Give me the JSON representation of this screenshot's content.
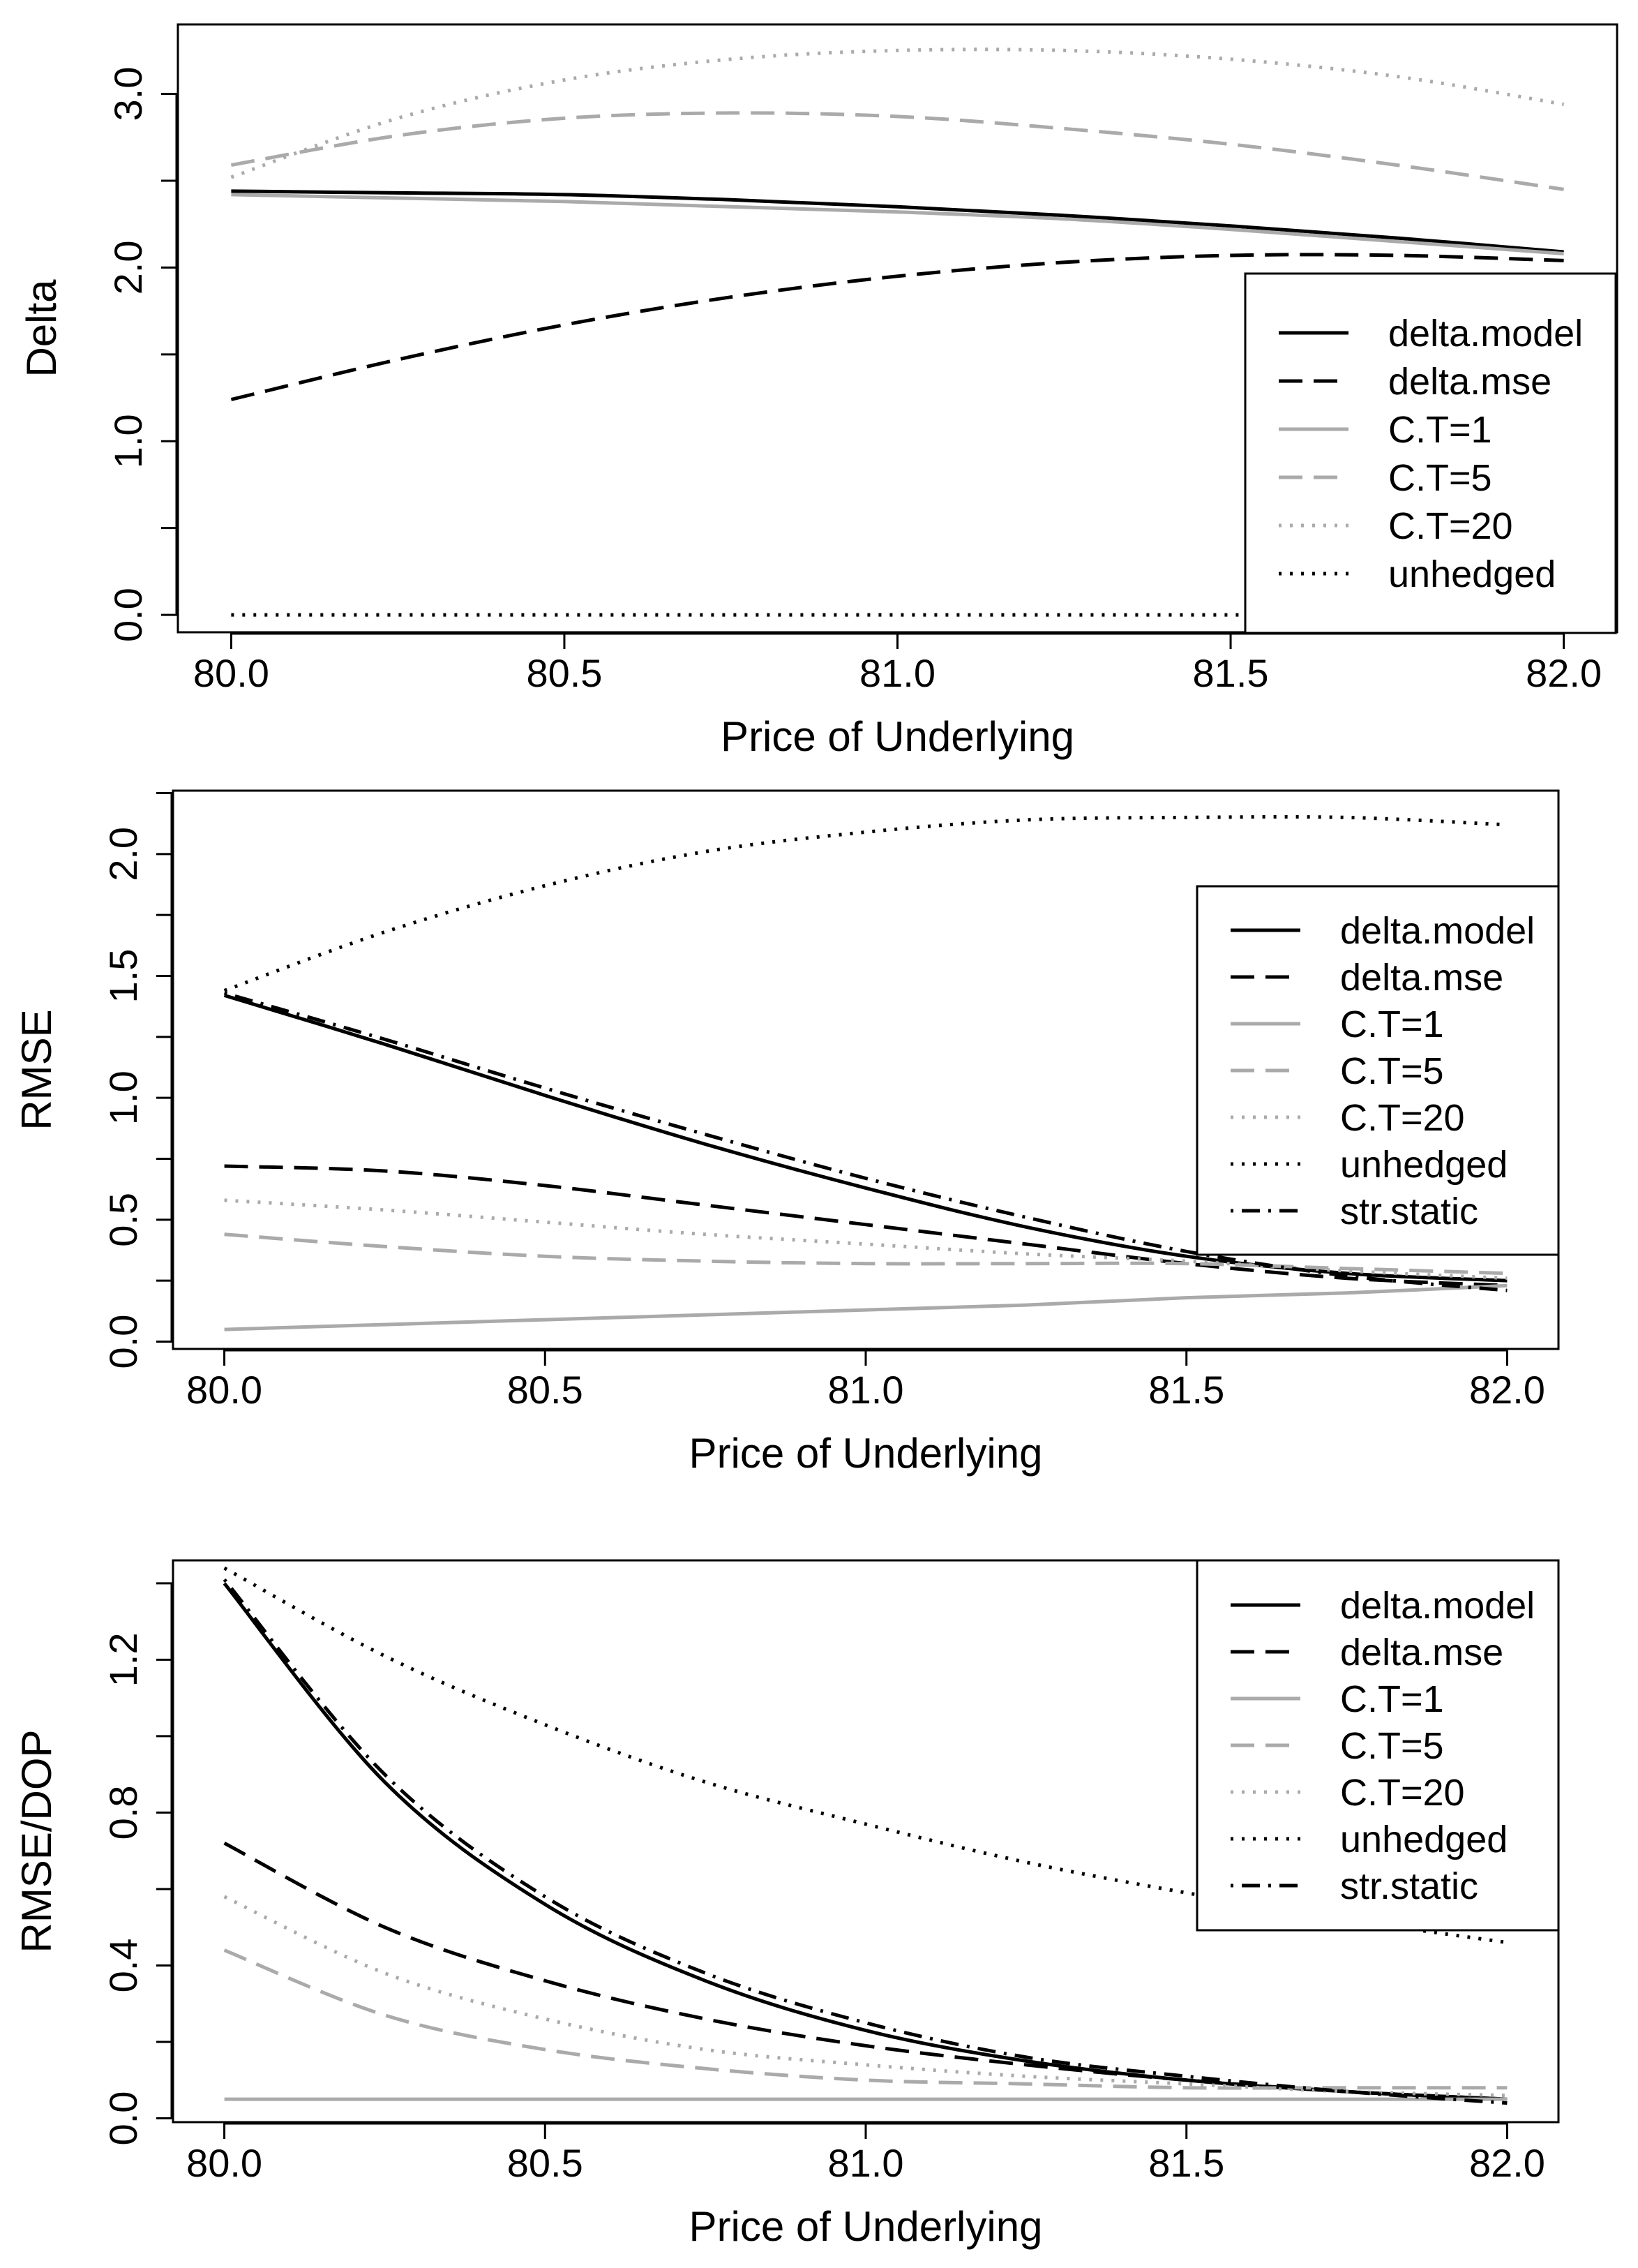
{
  "chart_data": [
    {
      "type": "line",
      "title": "",
      "xlabel": "Price of Underlying",
      "ylabel": "Delta",
      "xlim": [
        79.92,
        82.08
      ],
      "ylim": [
        -0.1,
        3.4
      ],
      "x_ticks": [
        "80.0",
        "80.5",
        "81.0",
        "81.5",
        "82.0"
      ],
      "y_ticks": [
        "0.0",
        "1.0",
        "2.0",
        "3.0"
      ],
      "x": [
        80.0,
        80.25,
        80.5,
        80.75,
        81.0,
        81.25,
        81.5,
        81.75,
        82.0
      ],
      "legend_position": "bottom-right",
      "series": [
        {
          "name": "delta.model",
          "color": "#000000",
          "dash": "solid",
          "values": [
            2.44,
            2.43,
            2.42,
            2.39,
            2.35,
            2.3,
            2.24,
            2.17,
            2.09
          ]
        },
        {
          "name": "delta.mse",
          "color": "#000000",
          "dash": "dashed",
          "values": [
            1.24,
            1.47,
            1.67,
            1.83,
            1.95,
            2.03,
            2.07,
            2.07,
            2.04
          ]
        },
        {
          "name": "C.T=1",
          "color": "#aaaaaa",
          "dash": "solid",
          "values": [
            2.42,
            2.4,
            2.38,
            2.35,
            2.32,
            2.28,
            2.22,
            2.15,
            2.08
          ]
        },
        {
          "name": "C.T=5",
          "color": "#aaaaaa",
          "dash": "dashed",
          "values": [
            2.59,
            2.76,
            2.86,
            2.89,
            2.87,
            2.8,
            2.71,
            2.59,
            2.45
          ]
        },
        {
          "name": "C.T=20",
          "color": "#aaaaaa",
          "dash": "dotted",
          "values": [
            2.52,
            2.86,
            3.08,
            3.2,
            3.25,
            3.25,
            3.2,
            3.1,
            2.94
          ]
        },
        {
          "name": "unhedged",
          "color": "#000000",
          "dash": "dotted",
          "values": [
            0.0,
            0.0,
            0.0,
            0.0,
            0.0,
            0.0,
            0.0,
            0.0,
            0.0
          ]
        }
      ]
    },
    {
      "type": "line",
      "title": "",
      "xlabel": "Price of Underlying",
      "ylabel": "RMSE",
      "xlim": [
        79.92,
        82.08
      ],
      "ylim": [
        -0.03,
        2.26
      ],
      "x_ticks": [
        "80.0",
        "80.5",
        "81.0",
        "81.5",
        "82.0"
      ],
      "y_ticks": [
        "0.0",
        "0.5",
        "1.0",
        "1.5",
        "2.0"
      ],
      "x": [
        80.0,
        80.25,
        80.5,
        80.75,
        81.0,
        81.25,
        81.5,
        81.75,
        82.0
      ],
      "legend_position": "right",
      "series": [
        {
          "name": "delta.model",
          "color": "#000000",
          "dash": "solid",
          "values": [
            1.42,
            1.22,
            1.01,
            0.81,
            0.63,
            0.47,
            0.35,
            0.28,
            0.25
          ]
        },
        {
          "name": "delta.mse",
          "color": "#000000",
          "dash": "dashed",
          "values": [
            0.72,
            0.7,
            0.64,
            0.56,
            0.48,
            0.4,
            0.32,
            0.26,
            0.23
          ]
        },
        {
          "name": "C.T=1",
          "color": "#aaaaaa",
          "dash": "solid",
          "values": [
            0.05,
            0.07,
            0.09,
            0.11,
            0.13,
            0.15,
            0.18,
            0.2,
            0.23
          ]
        },
        {
          "name": "C.T=5",
          "color": "#aaaaaa",
          "dash": "dashed",
          "values": [
            0.44,
            0.39,
            0.35,
            0.33,
            0.32,
            0.32,
            0.32,
            0.3,
            0.28
          ]
        },
        {
          "name": "C.T=20",
          "color": "#aaaaaa",
          "dash": "dotted",
          "values": [
            0.58,
            0.54,
            0.49,
            0.44,
            0.4,
            0.36,
            0.33,
            0.29,
            0.26
          ]
        },
        {
          "name": "unhedged",
          "color": "#000000",
          "dash": "dotted",
          "values": [
            1.44,
            1.68,
            1.87,
            2.01,
            2.09,
            2.14,
            2.15,
            2.15,
            2.12
          ]
        },
        {
          "name": "str.static",
          "color": "#000000",
          "dash": "dotdash",
          "values": [
            1.43,
            1.24,
            1.04,
            0.85,
            0.67,
            0.51,
            0.37,
            0.27,
            0.21
          ]
        }
      ]
    },
    {
      "type": "line",
      "title": "",
      "xlabel": "Price of Underlying",
      "ylabel": "RMSE/DOP",
      "xlim": [
        79.92,
        82.08
      ],
      "ylim": [
        -0.01,
        1.46
      ],
      "x_ticks": [
        "80.0",
        "80.5",
        "81.0",
        "81.5",
        "82.0"
      ],
      "y_ticks": [
        "0.0",
        "0.4",
        "0.8",
        "1.2"
      ],
      "x": [
        80.0,
        80.25,
        80.5,
        80.75,
        81.0,
        81.25,
        81.5,
        81.75,
        82.0
      ],
      "legend_position": "top-right",
      "series": [
        {
          "name": "delta.model",
          "color": "#000000",
          "dash": "solid",
          "values": [
            1.4,
            0.88,
            0.56,
            0.36,
            0.23,
            0.15,
            0.1,
            0.07,
            0.05
          ]
        },
        {
          "name": "delta.mse",
          "color": "#000000",
          "dash": "dashed",
          "values": [
            0.72,
            0.5,
            0.36,
            0.26,
            0.19,
            0.14,
            0.1,
            0.07,
            0.05
          ]
        },
        {
          "name": "C.T=1",
          "color": "#aaaaaa",
          "dash": "solid",
          "values": [
            0.05,
            0.05,
            0.05,
            0.05,
            0.05,
            0.05,
            0.05,
            0.05,
            0.05
          ]
        },
        {
          "name": "C.T=5",
          "color": "#aaaaaa",
          "dash": "dashed",
          "values": [
            0.44,
            0.27,
            0.18,
            0.13,
            0.1,
            0.09,
            0.08,
            0.08,
            0.08
          ]
        },
        {
          "name": "C.T=20",
          "color": "#aaaaaa",
          "dash": "dotted",
          "values": [
            0.58,
            0.38,
            0.26,
            0.18,
            0.14,
            0.11,
            0.09,
            0.07,
            0.06
          ]
        },
        {
          "name": "unhedged",
          "color": "#000000",
          "dash": "dotted",
          "values": [
            1.44,
            1.21,
            1.03,
            0.88,
            0.77,
            0.67,
            0.59,
            0.52,
            0.46
          ]
        },
        {
          "name": "str.static",
          "color": "#000000",
          "dash": "dotdash",
          "values": [
            1.41,
            0.9,
            0.58,
            0.38,
            0.25,
            0.16,
            0.11,
            0.07,
            0.04
          ]
        }
      ]
    }
  ]
}
